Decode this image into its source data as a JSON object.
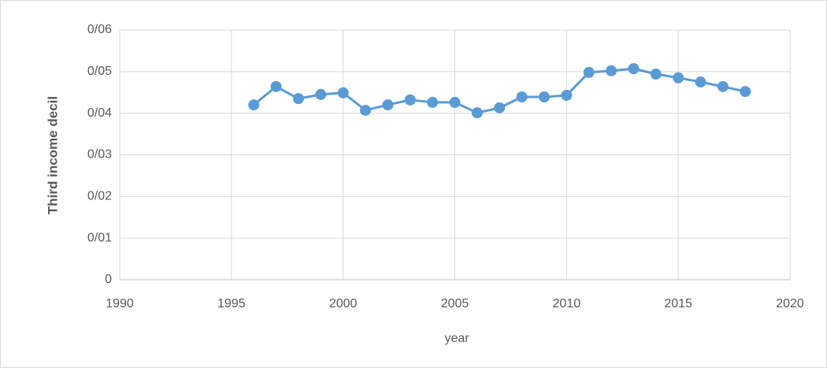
{
  "chart_data": {
    "type": "line",
    "x": [
      1996,
      1997,
      1998,
      1999,
      2000,
      2001,
      2002,
      2003,
      2004,
      2005,
      2006,
      2007,
      2008,
      2009,
      2010,
      2011,
      2012,
      2013,
      2014,
      2015,
      2016,
      2017,
      2018
    ],
    "values": [
      0.042,
      0.0464,
      0.0435,
      0.0445,
      0.0449,
      0.0407,
      0.042,
      0.0432,
      0.0426,
      0.0426,
      0.0401,
      0.0413,
      0.0439,
      0.0439,
      0.0443,
      0.0498,
      0.0502,
      0.0507,
      0.0494,
      0.0485,
      0.0475,
      0.0464,
      0.0452
    ],
    "color": "#5b9bd5",
    "xlabel": "year",
    "ylabel": "Third income decil",
    "xlim": [
      1990,
      2020
    ],
    "xticks": [
      1990,
      1995,
      2000,
      2005,
      2010,
      2015,
      2020
    ],
    "ylim": [
      0,
      0.06
    ],
    "yticks": [
      0,
      {
        "value": 0.01,
        "label": "0/01"
      },
      {
        "value": 0.02,
        "label": "0/02"
      },
      {
        "value": 0.03,
        "label": "0/03"
      },
      {
        "value": 0.04,
        "label": "0/04"
      },
      {
        "value": 0.05,
        "label": "0/05"
      },
      {
        "value": 0.06,
        "label": "0/06"
      }
    ],
    "grid": true
  }
}
